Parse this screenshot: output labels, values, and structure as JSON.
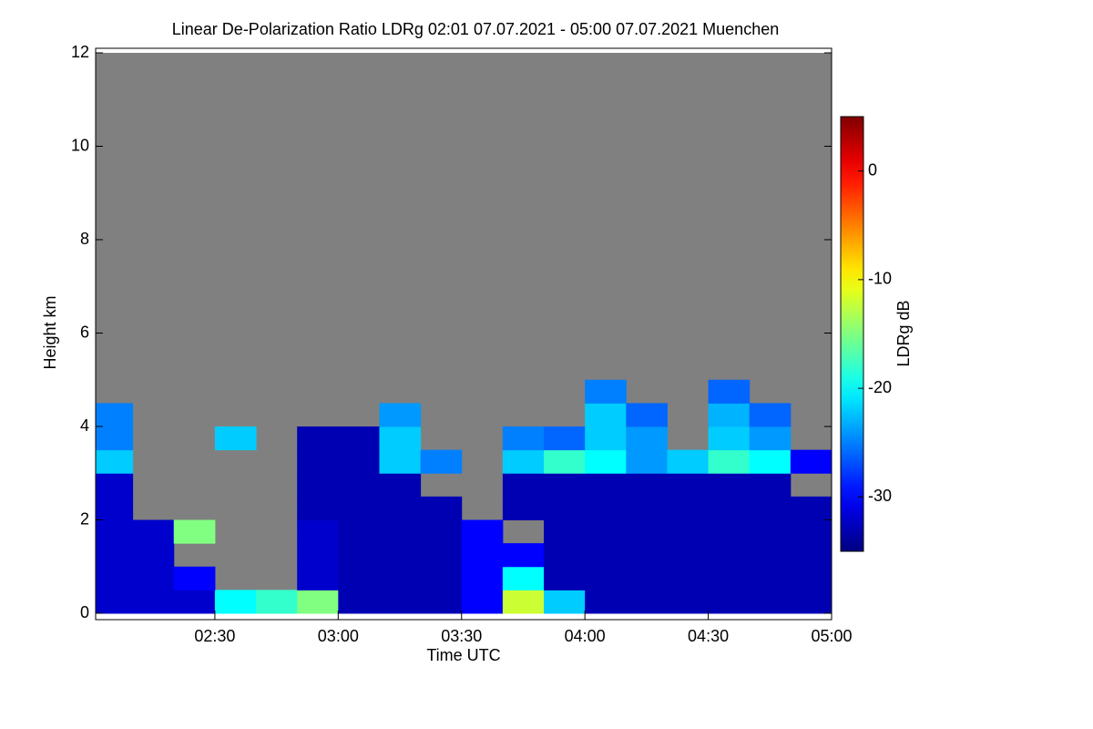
{
  "chart_data": {
    "type": "heatmap",
    "title": "Linear De-Polarization Ratio LDRg   02:01 07.07.2021 - 05:00 07.07.2021 Muenchen",
    "x_label": "Time UTC",
    "y_label": "Height km",
    "colorbar_label": "LDRg dB",
    "xlim": [
      "02:01",
      "05:00"
    ],
    "xticks": [
      "02:30",
      "03:00",
      "03:30",
      "04:00",
      "04:30",
      "05:00"
    ],
    "ylim": [
      0,
      12
    ],
    "yticks": [
      0,
      2,
      4,
      6,
      8,
      10,
      12
    ],
    "zlim": [
      -35,
      5
    ],
    "zticks": [
      0,
      -10,
      -20,
      -30
    ],
    "colormap": "jet",
    "missing_color": "#808080",
    "x": [
      "02:01",
      "02:10",
      "02:20",
      "02:30",
      "02:40",
      "02:50",
      "03:00",
      "03:10",
      "03:20",
      "03:30",
      "03:40",
      "03:50",
      "04:00",
      "04:10",
      "04:20",
      "04:30",
      "04:40",
      "04:50"
    ],
    "y": [
      0,
      0.5,
      1,
      1.5,
      2,
      2.5,
      3,
      3.5,
      4,
      4.5
    ],
    "z": [
      [
        -32,
        -32,
        -32,
        -20,
        -18,
        -15,
        -33,
        -33,
        -33,
        -30,
        -12,
        -22,
        -33,
        -33,
        -33,
        -33,
        -33,
        -33
      ],
      [
        -32,
        -32,
        -30,
        null,
        null,
        -32,
        -33,
        -33,
        -33,
        -30,
        -20,
        -33,
        -33,
        -33,
        -33,
        -33,
        -33,
        -33
      ],
      [
        -32,
        -32,
        null,
        null,
        null,
        -32,
        -33,
        -33,
        -33,
        -30,
        -30,
        -33,
        -33,
        -33,
        -33,
        -33,
        -33,
        -33
      ],
      [
        -32,
        -32,
        -15,
        null,
        null,
        -32,
        -33,
        -33,
        -33,
        -30,
        null,
        -33,
        -33,
        -33,
        -33,
        -33,
        -33,
        -33
      ],
      [
        -32,
        null,
        null,
        null,
        null,
        -33,
        -33,
        -33,
        -33,
        null,
        -33,
        -33,
        -33,
        -33,
        -33,
        -33,
        -33,
        -33
      ],
      [
        -32,
        null,
        null,
        null,
        null,
        -33,
        -33,
        -33,
        null,
        null,
        -33,
        -33,
        -33,
        -33,
        -33,
        -33,
        -33,
        null
      ],
      [
        -22,
        null,
        null,
        null,
        null,
        -33,
        -33,
        -22,
        -25,
        null,
        -22,
        -18,
        -20,
        -24,
        -22,
        -18,
        -20,
        -30
      ],
      [
        -25,
        null,
        null,
        -22,
        null,
        -33,
        -33,
        -22,
        null,
        null,
        -25,
        -26,
        -22,
        -24,
        null,
        -22,
        -24,
        null
      ],
      [
        -25,
        null,
        null,
        null,
        null,
        null,
        null,
        -24,
        null,
        null,
        null,
        null,
        -22,
        -26,
        null,
        -23,
        -26,
        null
      ],
      [
        null,
        null,
        null,
        null,
        null,
        null,
        null,
        null,
        null,
        null,
        null,
        null,
        -25,
        null,
        null,
        -26,
        null,
        null
      ]
    ]
  }
}
